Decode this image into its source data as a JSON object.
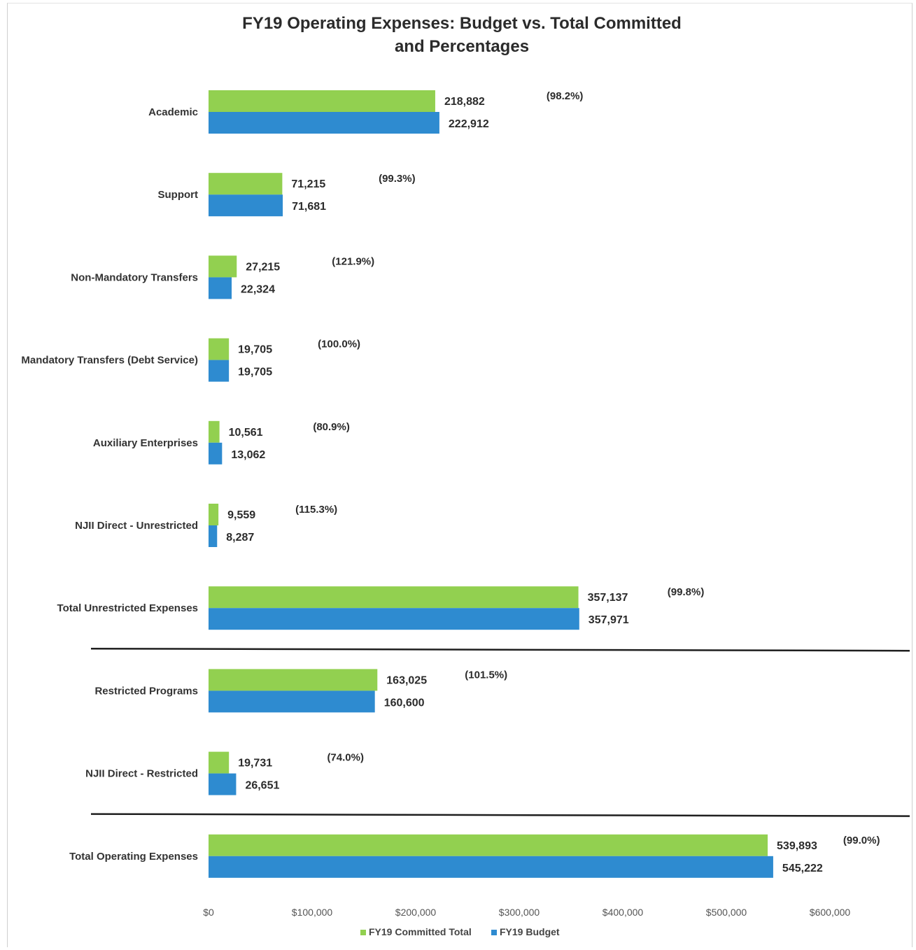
{
  "chart_data": {
    "type": "bar",
    "orientation": "horizontal",
    "title_line1": "FY19 Operating Expenses: Budget vs. Total Committed",
    "title_line2": "and Percentages",
    "categories": [
      "Academic",
      "Support",
      "Non-Mandatory Transfers",
      "Mandatory Transfers (Debt Service)",
      "Auxiliary Enterprises",
      "NJII Direct - Unrestricted",
      "Total Unrestricted Expenses",
      "Restricted Programs",
      "NJII Direct - Restricted",
      "Total Operating Expenses"
    ],
    "series": [
      {
        "name": "FY19 Committed Total",
        "color": "#92d050",
        "values": [
          218882,
          71215,
          27215,
          19705,
          10561,
          9559,
          357137,
          163025,
          19731,
          539893
        ],
        "labels": [
          "218,882",
          "71,215",
          "27,215",
          "19,705",
          "10,561",
          "9,559",
          "357,137",
          "163,025",
          "19,731",
          "539,893"
        ]
      },
      {
        "name": "FY19 Budget",
        "color": "#2e8bd0",
        "values": [
          222912,
          71681,
          22324,
          19705,
          13062,
          8287,
          357971,
          160600,
          26651,
          545222
        ],
        "labels": [
          "222,912",
          "71,681",
          "22,324",
          "19,705",
          "13,062",
          "8,287",
          "357,971",
          "160,600",
          "26,651",
          "545,222"
        ]
      }
    ],
    "percentages": [
      "(98.2%)",
      "(99.3%)",
      "(121.9%)",
      "(100.0%)",
      "(80.9%)",
      "(115.3%)",
      "(99.8%)",
      "(101.5%)",
      "(74.0%)",
      "(99.0%)"
    ],
    "xlim": [
      0,
      600000
    ],
    "ticks": [
      0,
      100000,
      200000,
      300000,
      400000,
      500000,
      600000
    ],
    "tick_labels": [
      "$0",
      "$100,000",
      "$200,000",
      "$300,000",
      "$400,000",
      "$500,000",
      "$600,000"
    ],
    "separators_after": [
      "Total Unrestricted Expenses",
      "NJII Direct - Restricted"
    ],
    "legend_position": "bottom",
    "grid": false
  }
}
